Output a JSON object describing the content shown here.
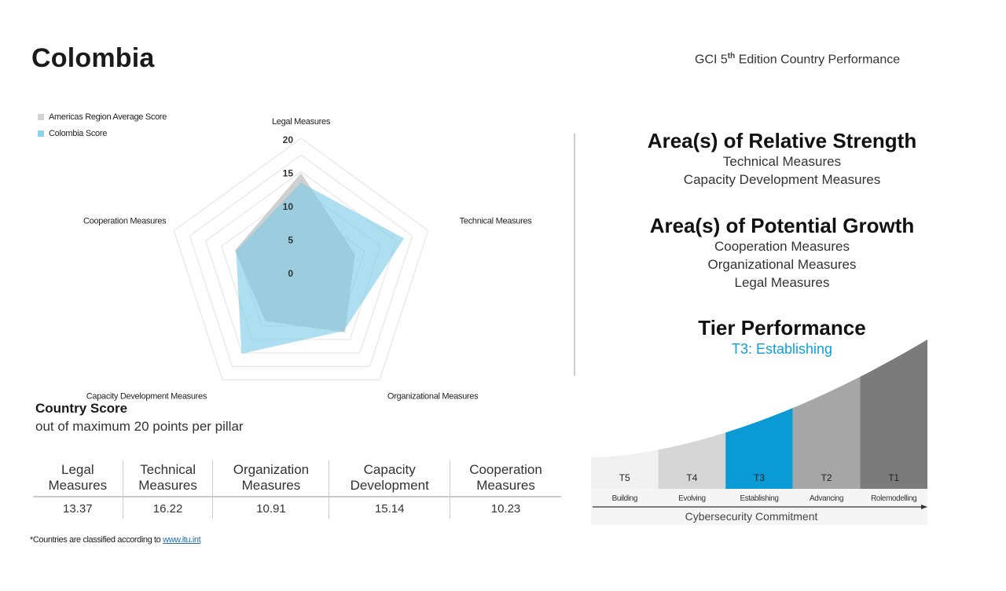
{
  "header": {
    "country": "Colombia",
    "edition_prefix": "GCI 5",
    "edition_sup": "th",
    "edition_suffix": " Edition Country Performance"
  },
  "legend": [
    {
      "label": "Americas Region Average Score",
      "color": "#d3d3d3"
    },
    {
      "label": "Colombia Score",
      "color": "#8fd2ec"
    }
  ],
  "chart_data": {
    "type": "radar",
    "title": "",
    "axes": [
      "Legal Measures",
      "Technical Measures",
      "Organizational Measures",
      "Capacity Development Measures",
      "Cooperation Measures"
    ],
    "rlim": [
      0,
      20
    ],
    "ticks": [
      0,
      5,
      10,
      15,
      20
    ],
    "grid_rings": [
      2.5,
      5,
      7.5,
      10,
      12.5,
      15,
      17.5,
      20
    ],
    "grid": true,
    "legend_position": "top-left",
    "series": [
      {
        "name": "Americas Region Average Score",
        "color": "#c8c8c8",
        "values": [
          14.8,
          8.5,
          11.2,
          9.1,
          10.4
        ]
      },
      {
        "name": "Colombia Score",
        "color": "#7ccbe9",
        "values": [
          13.37,
          16.22,
          10.91,
          15.14,
          10.23
        ]
      }
    ]
  },
  "score": {
    "title": "Country Score",
    "subtitle": "out of maximum 20 points per pillar",
    "columns": [
      {
        "line1": "Legal",
        "line2": "Measures",
        "value": "13.37"
      },
      {
        "line1": "Technical",
        "line2": "Measures",
        "value": "16.22"
      },
      {
        "line1": "Organization",
        "line2": "Measures",
        "value": "10.91"
      },
      {
        "line1": "Capacity",
        "line2": "Development",
        "value": "15.14"
      },
      {
        "line1": "Cooperation",
        "line2": "Measures",
        "value": "10.23"
      }
    ]
  },
  "footnote": {
    "text": "*Countries are classified according to ",
    "link": "www.itu.int"
  },
  "strength": {
    "title": "Area(s) of Relative Strength",
    "items": [
      "Technical Measures",
      "Capacity Development Measures"
    ]
  },
  "growth": {
    "title": "Area(s) of Potential Growth",
    "items": [
      "Cooperation Measures",
      "Organizational Measures",
      "Legal Measures"
    ]
  },
  "tier": {
    "title": "Tier Performance",
    "value": "T3: Establishing",
    "axis_label": "Cybersecurity Commitment",
    "active": "T3",
    "tiers": [
      {
        "code": "T5",
        "name": "Building",
        "color": "#f0f0f0"
      },
      {
        "code": "T4",
        "name": "Evolving",
        "color": "#d6d6d6"
      },
      {
        "code": "T3",
        "name": "Establishing",
        "color": "#0a9bd6"
      },
      {
        "code": "T2",
        "name": "Advancing",
        "color": "#a6a6a6"
      },
      {
        "code": "T1",
        "name": "Rolemodelling",
        "color": "#7b7b7b"
      }
    ]
  }
}
